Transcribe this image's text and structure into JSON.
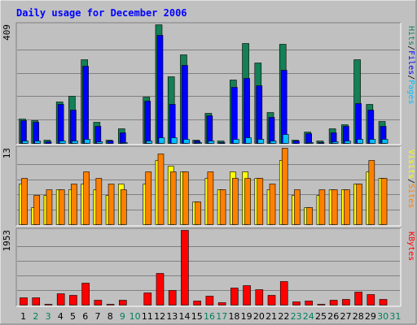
{
  "chart_data": [
    {
      "type": "bar",
      "title": "Daily usage for December 2006",
      "panel": "top",
      "ymax_label": "409",
      "ylim": [
        0,
        409
      ],
      "grid": true,
      "categories": [
        "1",
        "2",
        "3",
        "4",
        "5",
        "6",
        "7",
        "8",
        "9",
        "10",
        "11",
        "12",
        "13",
        "14",
        "15",
        "16",
        "17",
        "18",
        "19",
        "20",
        "21",
        "22",
        "23",
        "24",
        "25",
        "26",
        "27",
        "28",
        "29",
        "30",
        "31"
      ],
      "series": [
        {
          "name": "Hits",
          "color": "#138055",
          "values": [
            86,
            80,
            14,
            145,
            164,
            289,
            74,
            15,
            52,
            0,
            162,
            409,
            231,
            305,
            14,
            107,
            10,
            219,
            346,
            279,
            108,
            343,
            14,
            43,
            10,
            52,
            68,
            288,
            137,
            78,
            0
          ]
        },
        {
          "name": "Files",
          "color": "#0000ff",
          "values": [
            80,
            74,
            8,
            135,
            118,
            267,
            60,
            10,
            40,
            0,
            148,
            372,
            136,
            269,
            10,
            98,
            6,
            196,
            226,
            199,
            92,
            253,
            10,
            36,
            6,
            40,
            60,
            140,
            116,
            62,
            0
          ]
        },
        {
          "name": "Pages",
          "color": "#00c0ff",
          "values": [
            10,
            10,
            4,
            12,
            12,
            18,
            8,
            4,
            6,
            0,
            12,
            21,
            22,
            16,
            6,
            10,
            3,
            18,
            22,
            18,
            10,
            32,
            4,
            6,
            3,
            8,
            10,
            18,
            18,
            16,
            0
          ]
        }
      ]
    },
    {
      "type": "bar",
      "panel": "middle",
      "ymax_label": "13",
      "ylim": [
        0,
        13
      ],
      "grid": true,
      "categories": [
        "1",
        "2",
        "3",
        "4",
        "5",
        "6",
        "7",
        "8",
        "9",
        "10",
        "11",
        "12",
        "13",
        "14",
        "15",
        "16",
        "17",
        "18",
        "19",
        "20",
        "21",
        "22",
        "23",
        "24",
        "25",
        "26",
        "27",
        "28",
        "29",
        "30",
        "31"
      ],
      "series": [
        {
          "name": "Visits",
          "color": "#ffff00",
          "values": [
            7,
            3,
            5,
            6,
            6,
            7,
            6,
            5,
            7,
            0,
            7,
            11,
            10,
            9,
            4,
            8,
            6,
            9,
            9,
            8,
            6,
            11,
            5,
            3,
            5,
            6,
            6,
            7,
            9,
            8,
            0
          ]
        },
        {
          "name": "Sites",
          "color": "#ff8000",
          "values": [
            8,
            5,
            6,
            6,
            7,
            9,
            8,
            7,
            6,
            0,
            9,
            12,
            9,
            9,
            4,
            9,
            6,
            8,
            8,
            8,
            7,
            13,
            6,
            3,
            6,
            6,
            6,
            7,
            11,
            8,
            0
          ]
        }
      ]
    },
    {
      "type": "bar",
      "panel": "bottom",
      "ymax_label": "1953",
      "ylim": [
        0,
        1953
      ],
      "grid": true,
      "categories": [
        "1",
        "2",
        "3",
        "4",
        "5",
        "6",
        "7",
        "8",
        "9",
        "10",
        "11",
        "12",
        "13",
        "14",
        "15",
        "16",
        "17",
        "18",
        "19",
        "20",
        "21",
        "22",
        "23",
        "24",
        "25",
        "26",
        "27",
        "28",
        "29",
        "30",
        "31"
      ],
      "series": [
        {
          "name": "KBytes",
          "color": "#ff0000",
          "values": [
            220,
            200,
            50,
            320,
            270,
            580,
            150,
            50,
            150,
            0,
            330,
            840,
            390,
            1953,
            120,
            250,
            80,
            470,
            520,
            420,
            270,
            620,
            110,
            130,
            50,
            140,
            170,
            360,
            290,
            170,
            0
          ]
        }
      ]
    }
  ],
  "day_labels": {
    "days": [
      "1",
      "2",
      "3",
      "4",
      "5",
      "6",
      "7",
      "8",
      "9",
      "10",
      "11",
      "12",
      "13",
      "14",
      "15",
      "16",
      "17",
      "18",
      "19",
      "20",
      "21",
      "22",
      "23",
      "24",
      "25",
      "26",
      "27",
      "28",
      "29",
      "30",
      "31"
    ],
    "weekend_days": [
      "2",
      "3",
      "9",
      "10",
      "16",
      "17",
      "23",
      "24",
      "30",
      "31"
    ],
    "weekday_color": "#000000",
    "weekend_color": "#00805c"
  },
  "side_labels": {
    "top": [
      {
        "text": "Pages",
        "color": "#00c0ff"
      },
      {
        "text": "/",
        "color": "#000000"
      },
      {
        "text": "Files",
        "color": "#0000ff"
      },
      {
        "text": "/",
        "color": "#000000"
      },
      {
        "text": "Hits",
        "color": "#138055"
      }
    ],
    "middle": [
      {
        "text": "Sites",
        "color": "#ff8000"
      },
      {
        "text": "/",
        "color": "#000000"
      },
      {
        "text": "Visits",
        "color": "#ffff00"
      }
    ],
    "bottom": [
      {
        "text": "KBytes",
        "color": "#ff0000"
      }
    ]
  },
  "colors": {
    "background": "#c0c0c0",
    "panel_background": "#c0c0c0",
    "grid": "#808080",
    "title": "#0000ff",
    "border_light": "#ffffff",
    "border_dark": "#808080"
  }
}
